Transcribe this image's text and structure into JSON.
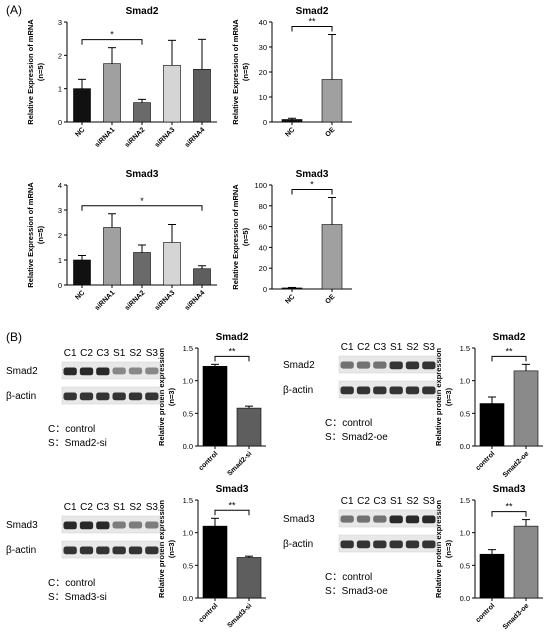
{
  "panel_labels": {
    "a": "(A)",
    "b": "(B)"
  },
  "blots": [
    {
      "lanes": [
        "C1",
        "C2",
        "C3",
        "S1",
        "S2",
        "S3"
      ],
      "rows": [
        {
          "label": "Smad2",
          "intensity": [
            0.9,
            0.9,
            0.9,
            0.45,
            0.45,
            0.45
          ]
        },
        {
          "label": "β-actin",
          "intensity": [
            0.85,
            0.85,
            0.85,
            0.85,
            0.85,
            0.85
          ]
        }
      ],
      "legend": [
        "C：control",
        "S：Smad2-si"
      ]
    },
    {
      "lanes": [
        "C1",
        "C2",
        "C3",
        "S1",
        "S2",
        "S3"
      ],
      "rows": [
        {
          "label": "Smad2",
          "intensity": [
            0.55,
            0.55,
            0.55,
            0.85,
            0.85,
            0.85
          ]
        },
        {
          "label": "β-actin",
          "intensity": [
            0.85,
            0.85,
            0.85,
            0.85,
            0.85,
            0.85
          ]
        }
      ],
      "legend": [
        "C：control",
        "S：Smad2-oe"
      ]
    },
    {
      "lanes": [
        "C1",
        "C2",
        "C3",
        "S1",
        "S2",
        "S3"
      ],
      "rows": [
        {
          "label": "Smad3",
          "intensity": [
            0.9,
            0.9,
            0.9,
            0.5,
            0.5,
            0.5
          ]
        },
        {
          "label": "β-actin",
          "intensity": [
            0.85,
            0.85,
            0.85,
            0.85,
            0.85,
            0.85
          ]
        }
      ],
      "legend": [
        "C：control",
        "S：Smad3-si"
      ]
    },
    {
      "lanes": [
        "C1",
        "C2",
        "C3",
        "S1",
        "S2",
        "S3"
      ],
      "rows": [
        {
          "label": "Smad3",
          "intensity": [
            0.55,
            0.55,
            0.55,
            0.9,
            0.9,
            0.9
          ]
        },
        {
          "label": "β-actin",
          "intensity": [
            0.85,
            0.85,
            0.85,
            0.85,
            0.85,
            0.85
          ]
        }
      ],
      "legend": [
        "C：control",
        "S：Smad3-oe"
      ]
    }
  ],
  "chart_data": [
    {
      "id": "a1",
      "type": "bar",
      "title": "Smad2",
      "ylabel": [
        "Relative Expression of mRNA",
        "(n=5)"
      ],
      "categories": [
        "NC",
        "siRNA1",
        "siRNA2",
        "siRNA3",
        "siRNA4"
      ],
      "values": [
        1.0,
        1.75,
        0.58,
        1.7,
        1.58
      ],
      "errors": [
        0.28,
        0.48,
        0.1,
        0.75,
        0.9
      ],
      "colors": [
        "#111111",
        "#a0a0a0",
        "#6a6a6a",
        "#d5d5d5",
        "#5e5e5e"
      ],
      "ylim": [
        0,
        3
      ],
      "yticks": [
        0,
        1,
        2,
        3
      ],
      "ytick_labels": [
        "0",
        "1",
        "2",
        "3"
      ],
      "significance": [
        {
          "from": 0,
          "to": 2,
          "label": "*"
        }
      ]
    },
    {
      "id": "a2",
      "type": "bar",
      "title": "Smad2",
      "ylabel": [
        "Relative Expression of mRNA",
        "(n=5)"
      ],
      "categories": [
        "NC",
        "OE"
      ],
      "values": [
        1.0,
        17.0
      ],
      "errors": [
        0.5,
        18.0
      ],
      "colors": [
        "#111111",
        "#a0a0a0"
      ],
      "ylim": [
        0,
        40
      ],
      "yticks": [
        0,
        10,
        20,
        30,
        40
      ],
      "ytick_labels": [
        "0",
        "10",
        "20",
        "30",
        "40"
      ],
      "significance": [
        {
          "from": 0,
          "to": 1,
          "label": "**"
        }
      ]
    },
    {
      "id": "a3",
      "type": "bar",
      "title": "Smad3",
      "ylabel": [
        "Relative Expression of mRNA",
        "(n=5)"
      ],
      "categories": [
        "NC",
        "siRNA1",
        "siRNA2",
        "siRNA3",
        "siRNA4"
      ],
      "values": [
        1.0,
        2.3,
        1.3,
        1.7,
        0.65
      ],
      "errors": [
        0.18,
        0.55,
        0.3,
        0.72,
        0.12
      ],
      "colors": [
        "#111111",
        "#a0a0a0",
        "#6a6a6a",
        "#d5d5d5",
        "#5e5e5e"
      ],
      "ylim": [
        0,
        4
      ],
      "yticks": [
        0,
        1,
        2,
        3,
        4
      ],
      "ytick_labels": [
        "0",
        "1",
        "2",
        "3",
        "4"
      ],
      "significance": [
        {
          "from": 0,
          "to": 4,
          "label": "*"
        }
      ]
    },
    {
      "id": "a4",
      "type": "bar",
      "title": "Smad3",
      "ylabel": [
        "Relative Expression of mRNA",
        "(n=5)"
      ],
      "categories": [
        "NC",
        "OE"
      ],
      "values": [
        1.0,
        62.0
      ],
      "errors": [
        0.5,
        26.0
      ],
      "colors": [
        "#111111",
        "#a0a0a0"
      ],
      "ylim": [
        0,
        100
      ],
      "yticks": [
        0,
        20,
        40,
        60,
        80,
        100
      ],
      "ytick_labels": [
        "0",
        "20",
        "40",
        "60",
        "80",
        "100"
      ],
      "significance": [
        {
          "from": 0,
          "to": 1,
          "label": "*"
        }
      ]
    },
    {
      "id": "b1",
      "type": "bar",
      "title": "Smad2",
      "ylabel": [
        "Relative protein expression",
        "(n=3)"
      ],
      "categories": [
        "control",
        "Smad2-si"
      ],
      "values": [
        1.22,
        0.58
      ],
      "errors": [
        0.03,
        0.03
      ],
      "colors": [
        "#000000",
        "#5e5e5e"
      ],
      "ylim": [
        0,
        1.5
      ],
      "yticks": [
        0,
        0.5,
        1.0,
        1.5
      ],
      "ytick_labels": [
        "0.0",
        "0.5",
        "1.0",
        "1.5"
      ],
      "significance": [
        {
          "from": 0,
          "to": 1,
          "label": "**"
        }
      ]
    },
    {
      "id": "b2",
      "type": "bar",
      "title": "Smad2",
      "ylabel": [
        "Relative protein expression",
        "(n=3)"
      ],
      "categories": [
        "control",
        "Smad2-oe"
      ],
      "values": [
        0.65,
        1.15
      ],
      "errors": [
        0.1,
        0.1
      ],
      "colors": [
        "#000000",
        "#8a8a8a"
      ],
      "ylim": [
        0,
        1.5
      ],
      "yticks": [
        0,
        0.5,
        1.0,
        1.5
      ],
      "ytick_labels": [
        "0.0",
        "0.5",
        "1.0",
        "1.5"
      ],
      "significance": [
        {
          "from": 0,
          "to": 1,
          "label": "**"
        }
      ]
    },
    {
      "id": "b3",
      "type": "bar",
      "title": "Smad3",
      "ylabel": [
        "Relative protein expression",
        "(n=3)"
      ],
      "categories": [
        "control",
        "Smad3-si"
      ],
      "values": [
        1.1,
        0.62
      ],
      "errors": [
        0.12,
        0.02
      ],
      "colors": [
        "#000000",
        "#5e5e5e"
      ],
      "ylim": [
        0,
        1.5
      ],
      "yticks": [
        0,
        0.5,
        1.0,
        1.5
      ],
      "ytick_labels": [
        "0.0",
        "0.5",
        "1.0",
        "1.5"
      ],
      "significance": [
        {
          "from": 0,
          "to": 1,
          "label": "**"
        }
      ]
    },
    {
      "id": "b4",
      "type": "bar",
      "title": "Smad3",
      "ylabel": [
        "Relative protein expression",
        "(n=3)"
      ],
      "categories": [
        "control",
        "Smad3-oe"
      ],
      "values": [
        0.67,
        1.1
      ],
      "errors": [
        0.07,
        0.1
      ],
      "colors": [
        "#000000",
        "#8a8a8a"
      ],
      "ylim": [
        0,
        1.5
      ],
      "yticks": [
        0,
        0.5,
        1.0,
        1.5
      ],
      "ytick_labels": [
        "0.0",
        "0.5",
        "1.0",
        "1.5"
      ],
      "significance": [
        {
          "from": 0,
          "to": 1,
          "label": "**"
        }
      ]
    }
  ]
}
